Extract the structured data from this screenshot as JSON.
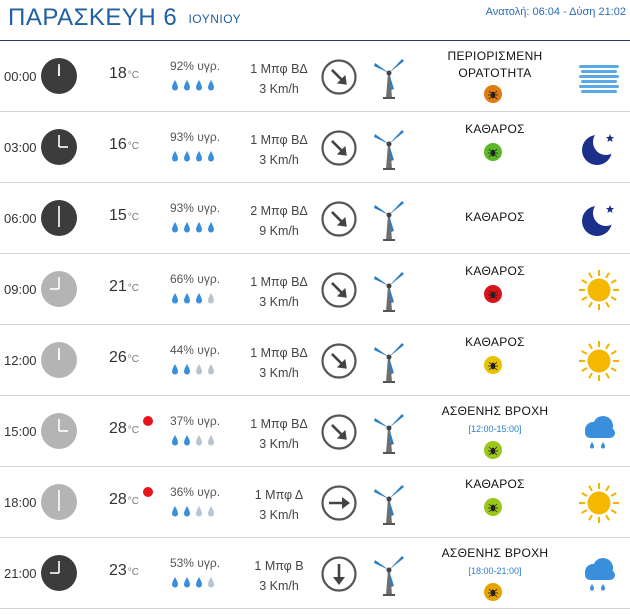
{
  "header": {
    "day": "ΠΑΡΑΣΚΕΥΗ 6",
    "month": "ΙΟΥΝΙΟΥ",
    "sun": "Ανατολή: 06:04 - Δύση 21:02"
  },
  "rows": [
    {
      "time": "00:00",
      "clock": "dark",
      "hour": 0,
      "temp": "18",
      "deg": "°C",
      "rain_dot": false,
      "humidity": "92% υγρ.",
      "drops_filled": 4,
      "wind_force": "1 Μπφ ΒΔ",
      "wind_speed": "3 Km/h",
      "wind_dir": "SE",
      "condition": "ΠΕΡΙΟΡΙΣΜΕΝΗ ΟΡΑΤΟΤΗΤΑ",
      "condition_lines": 2,
      "period": "",
      "pollen_color": "#e07b10",
      "weather_icon": "fog-icon"
    },
    {
      "time": "03:00",
      "clock": "dark",
      "hour": 3,
      "temp": "16",
      "deg": "°C",
      "rain_dot": false,
      "humidity": "93% υγρ.",
      "drops_filled": 4,
      "wind_force": "1 Μπφ ΒΔ",
      "wind_speed": "3 Km/h",
      "wind_dir": "SE",
      "condition": "ΚΑΘΑΡΟΣ",
      "condition_lines": 1,
      "period": "",
      "pollen_color": "#5cb82a",
      "weather_icon": "moon-icon"
    },
    {
      "time": "06:00",
      "clock": "dark",
      "hour": 6,
      "temp": "15",
      "deg": "°C",
      "rain_dot": false,
      "humidity": "93% υγρ.",
      "drops_filled": 4,
      "wind_force": "2 Μπφ ΒΔ",
      "wind_speed": "9 Km/h",
      "wind_dir": "SE",
      "condition": "ΚΑΘΑΡΟΣ",
      "condition_lines": 1,
      "period": "",
      "pollen_color": "",
      "weather_icon": "moon-icon"
    },
    {
      "time": "09:00",
      "clock": "light",
      "hour": 9,
      "temp": "21",
      "deg": "°C",
      "rain_dot": false,
      "humidity": "66% υγρ.",
      "drops_filled": 3,
      "wind_force": "1 Μπφ ΒΔ",
      "wind_speed": "3 Km/h",
      "wind_dir": "SE",
      "condition": "ΚΑΘΑΡΟΣ",
      "condition_lines": 1,
      "period": "",
      "pollen_color": "#d8141a",
      "weather_icon": "sun-icon"
    },
    {
      "time": "12:00",
      "clock": "light",
      "hour": 12,
      "temp": "26",
      "deg": "°C",
      "rain_dot": false,
      "humidity": "44% υγρ.",
      "drops_filled": 2,
      "wind_force": "1 Μπφ ΒΔ",
      "wind_speed": "3 Km/h",
      "wind_dir": "SE",
      "condition": "ΚΑΘΑΡΟΣ",
      "condition_lines": 1,
      "period": "",
      "pollen_color": "#e8c300",
      "weather_icon": "sun-icon"
    },
    {
      "time": "15:00",
      "clock": "light",
      "hour": 15,
      "temp": "28",
      "deg": "°C",
      "rain_dot": true,
      "humidity": "37% υγρ.",
      "drops_filled": 2,
      "wind_force": "1 Μπφ ΒΔ",
      "wind_speed": "3 Km/h",
      "wind_dir": "SE",
      "condition": "ΑΣΘΕΝΗΣ ΒΡΟΧΗ",
      "condition_lines": 1,
      "period": "[12:00-15:00]",
      "pollen_color": "#9ac81a",
      "weather_icon": "rain-cloud-icon"
    },
    {
      "time": "18:00",
      "clock": "light",
      "hour": 18,
      "temp": "28",
      "deg": "°C",
      "rain_dot": true,
      "humidity": "36% υγρ.",
      "drops_filled": 2,
      "wind_force": "1 Μπφ Δ",
      "wind_speed": "3 Km/h",
      "wind_dir": "E",
      "condition": "ΚΑΘΑΡΟΣ",
      "condition_lines": 1,
      "period": "",
      "pollen_color": "#9ac81a",
      "weather_icon": "sun-icon"
    },
    {
      "time": "21:00",
      "clock": "dark",
      "hour": 21,
      "temp": "23",
      "deg": "°C",
      "rain_dot": false,
      "humidity": "53% υγρ.",
      "drops_filled": 3,
      "wind_force": "1 Μπφ Β",
      "wind_speed": "3 Km/h",
      "wind_dir": "S",
      "condition": "ΑΣΘΕΝΗΣ ΒΡΟΧΗ",
      "condition_lines": 1,
      "period": "[18:00-21:00]",
      "pollen_color": "#e8a300",
      "weather_icon": "rain-cloud-icon"
    }
  ]
}
